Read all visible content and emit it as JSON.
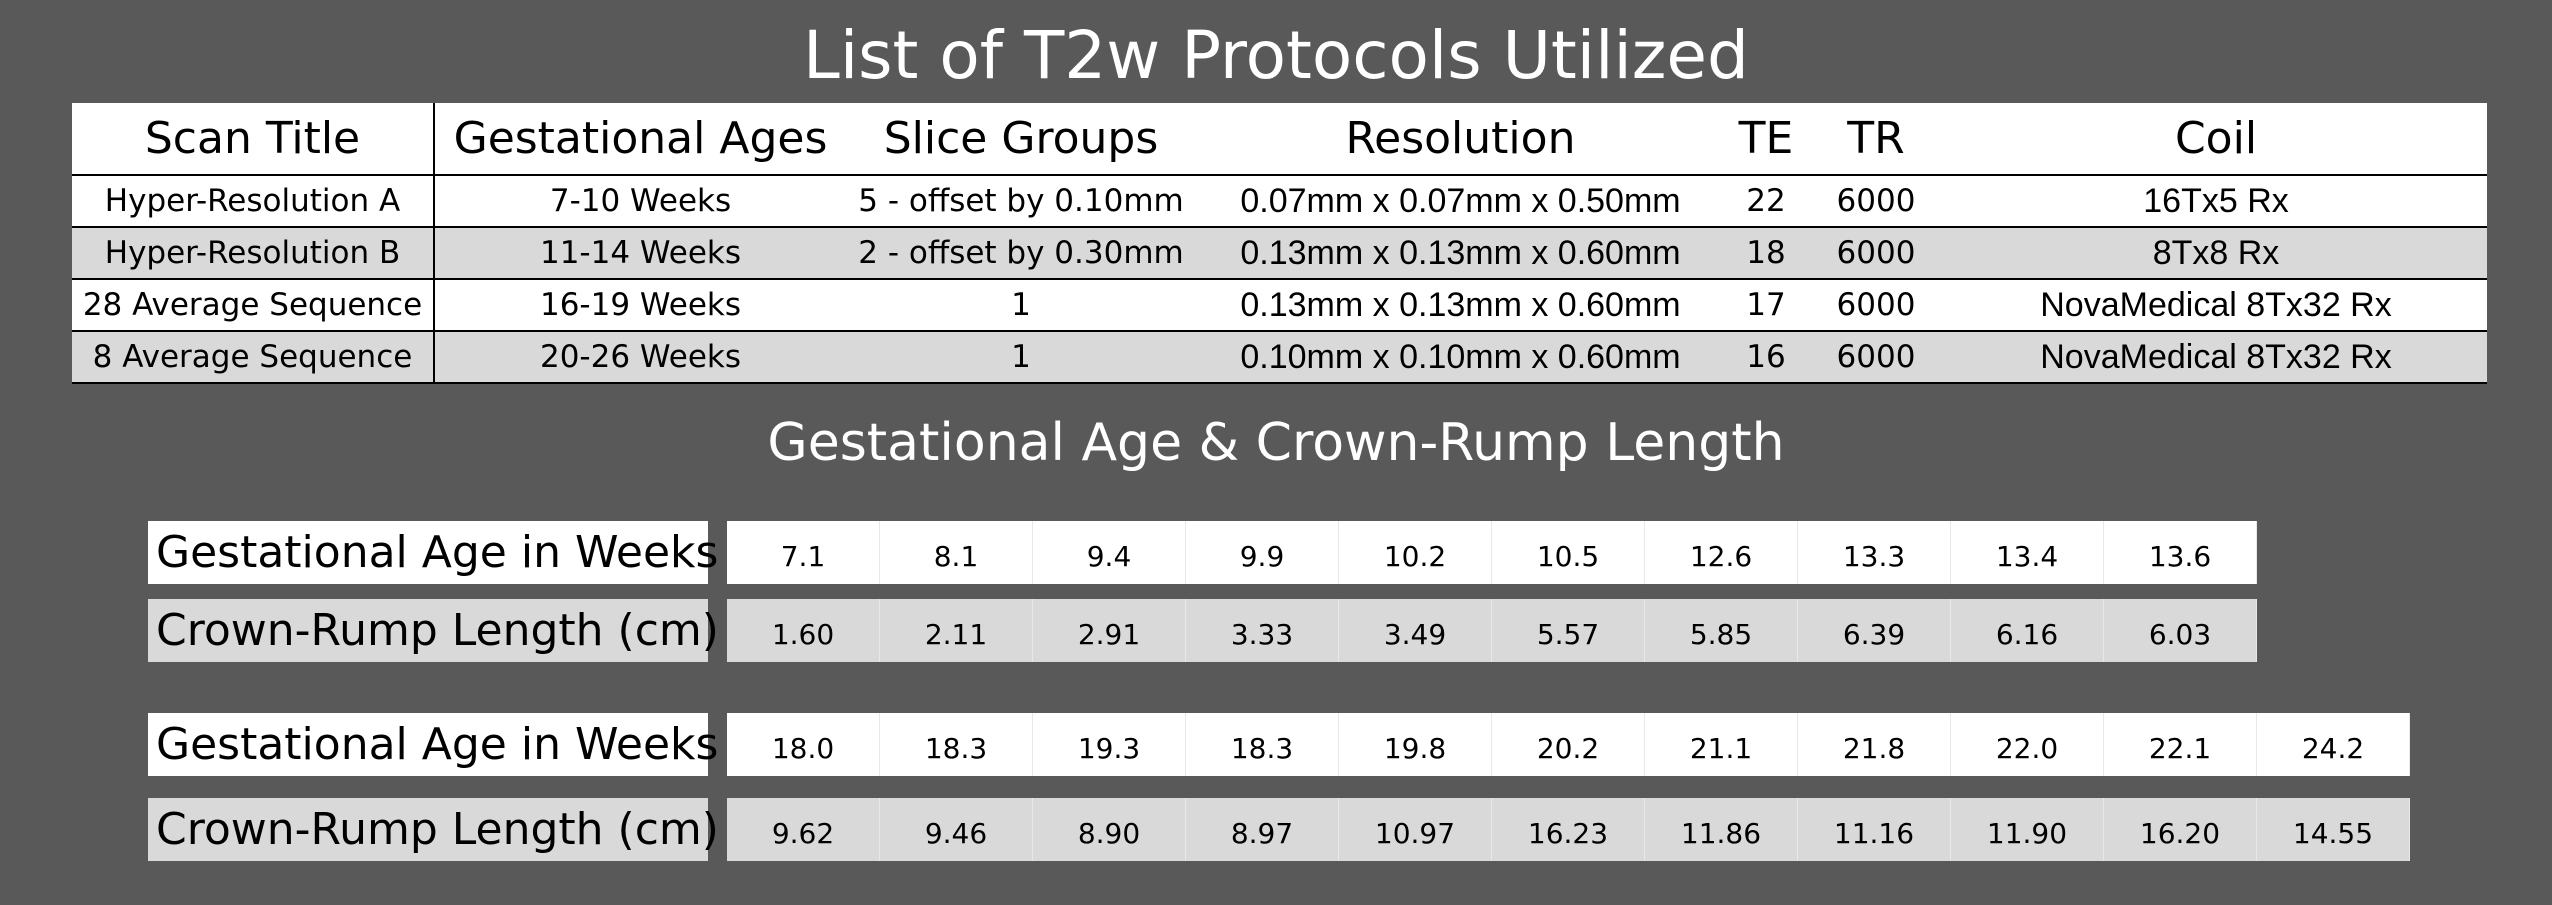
{
  "header": {
    "title": "List of T2w Protocols Utilized"
  },
  "table": {
    "headers": [
      "Scan Title",
      "Gestational Ages",
      "Slice Groups",
      "Resolution",
      "TE",
      "TR",
      "Coil"
    ],
    "rows": [
      [
        "Hyper-Resolution A",
        "7-10 Weeks",
        "5 - offset by 0.10mm",
        "0.07mm x 0.07mm x 0.50mm",
        "22",
        "6000",
        "16Tx5 Rx"
      ],
      [
        "Hyper-Resolution B",
        "11-14 Weeks",
        "2 - offset by 0.30mm",
        "0.13mm x 0.13mm x 0.60mm",
        "18",
        "6000",
        "8Tx8 Rx"
      ],
      [
        "28 Average Sequence",
        "16-19 Weeks",
        "1",
        "0.13mm x 0.13mm x 0.60mm",
        "17",
        "6000",
        "NovaMedical 8Tx32 Rx"
      ],
      [
        "8 Average Sequence",
        "20-26 Weeks",
        "1",
        "0.10mm x 0.10mm x 0.60mm",
        "16",
        "6000",
        "NovaMedical 8Tx32 Rx"
      ]
    ]
  },
  "section": {
    "title": "Gestational Age & Crown-Rump Length"
  },
  "measurements": [
    {
      "rows": [
        {
          "label": "Gestational Age in Weeks",
          "values": [
            "7.1",
            "8.1",
            "9.4",
            "9.9",
            "10.2",
            "10.5",
            "12.6",
            "13.3",
            "13.4",
            "13.6"
          ]
        },
        {
          "label": "Crown-Rump Length (cm)",
          "values": [
            "1.60",
            "2.11",
            "2.91",
            "3.33",
            "3.49",
            "5.57",
            "5.85",
            "6.39",
            "6.16",
            "6.03"
          ]
        }
      ]
    },
    {
      "rows": [
        {
          "label": "Gestational Age in Weeks",
          "values": [
            "18.0",
            "18.3",
            "19.3",
            "18.3",
            "19.8",
            "20.2",
            "21.1",
            "21.8",
            "22.0",
            "22.1",
            "24.2"
          ]
        },
        {
          "label": "Crown-Rump Length (cm)",
          "values": [
            "9.62",
            "9.46",
            "8.90",
            "8.97",
            "10.97",
            "16.23",
            "11.86",
            "11.16",
            "11.90",
            "16.20",
            "14.55"
          ]
        }
      ]
    }
  ]
}
